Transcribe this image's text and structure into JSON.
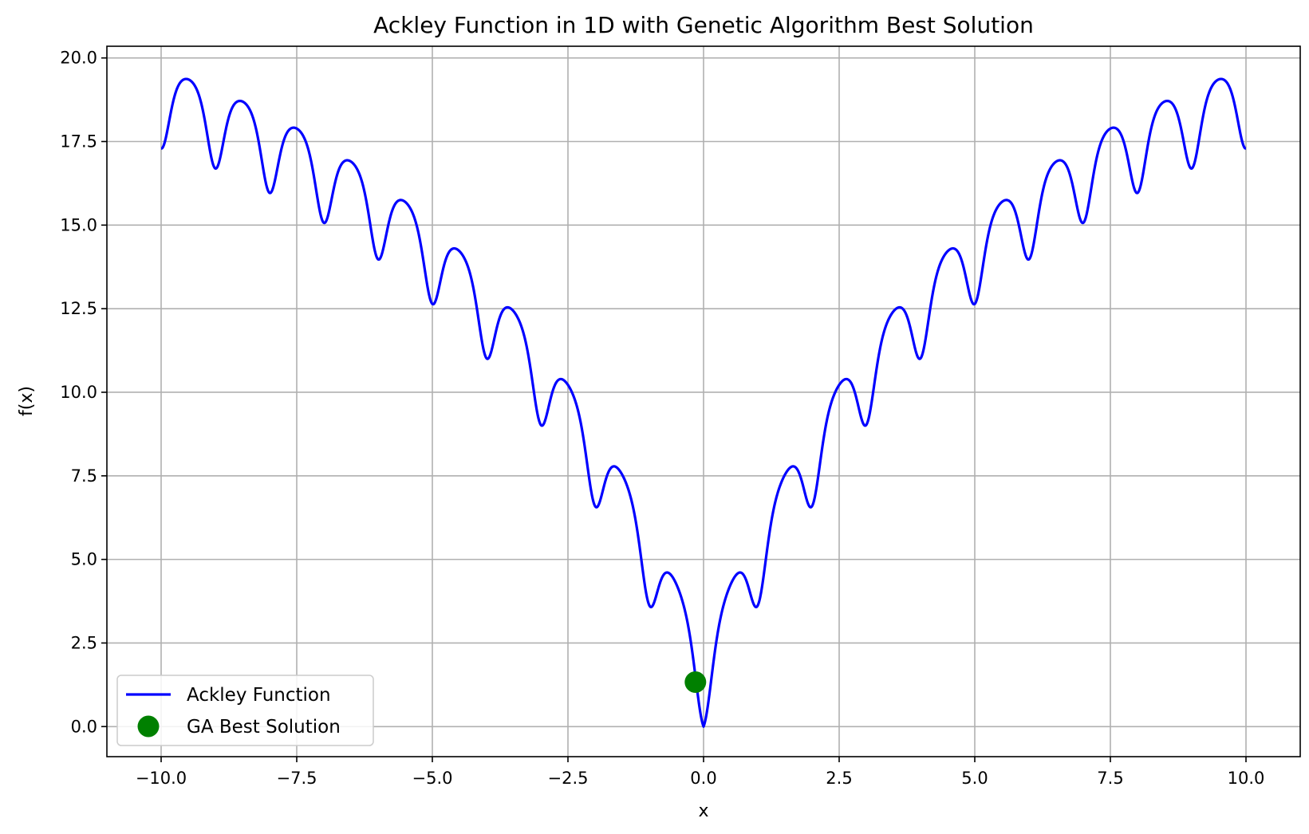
{
  "chart_data": {
    "type": "line",
    "title": "Ackley Function in 1D with Genetic Algorithm Best Solution",
    "xlabel": "x",
    "ylabel": "f(x)",
    "xlim": [
      -11,
      11
    ],
    "ylim": [
      -0.9,
      20.35
    ],
    "xticks": [
      -10.0,
      -7.5,
      -5.0,
      -2.5,
      0.0,
      2.5,
      5.0,
      7.5,
      10.0
    ],
    "xtick_labels": [
      "−10.0",
      "−7.5",
      "−5.0",
      "−2.5",
      "0.0",
      "2.5",
      "5.0",
      "7.5",
      "10.0"
    ],
    "yticks": [
      0.0,
      2.5,
      5.0,
      7.5,
      10.0,
      12.5,
      15.0,
      17.5,
      20.0
    ],
    "ytick_labels": [
      "0.0",
      "2.5",
      "5.0",
      "7.5",
      "10.0",
      "12.5",
      "15.0",
      "17.5",
      "20.0"
    ],
    "grid": true,
    "legend_position": "lower-left",
    "series": [
      {
        "name": "Ackley Function",
        "kind": "line",
        "color": "#0000ff",
        "function": "ackley",
        "x_range": [
          -10,
          10
        ]
      },
      {
        "name": "GA Best Solution",
        "kind": "scatter",
        "color": "#008000",
        "points": [
          {
            "x": -0.15,
            "y": 1.33
          }
        ]
      }
    ]
  }
}
